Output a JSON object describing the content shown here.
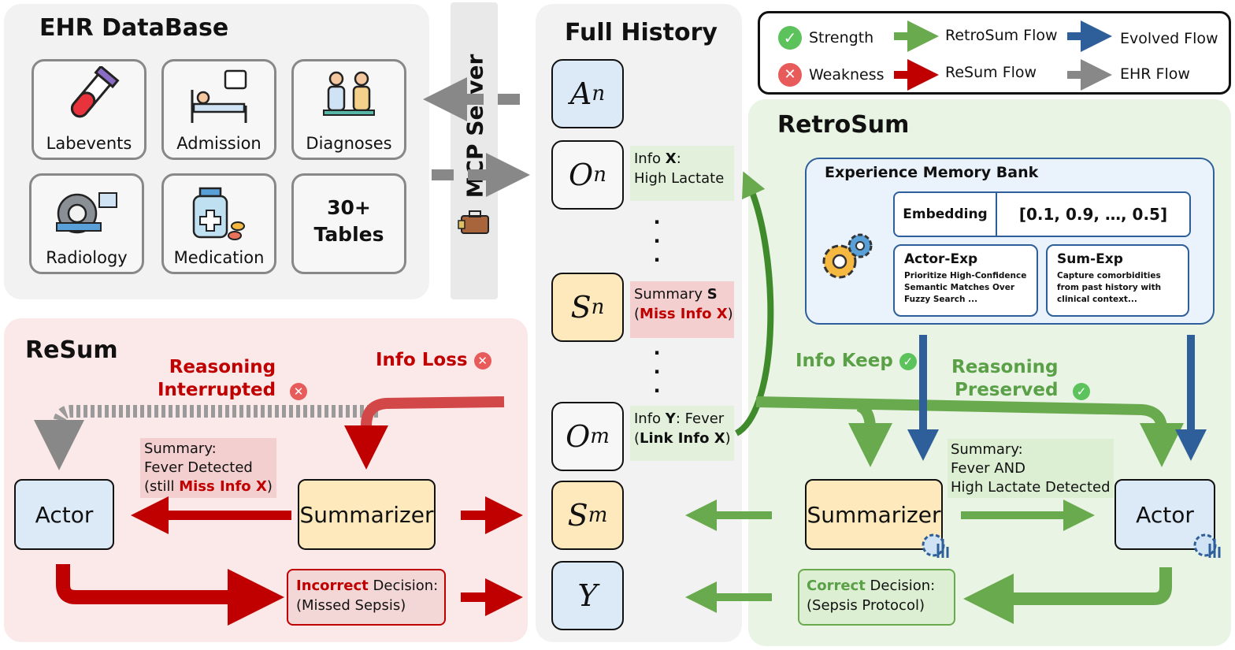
{
  "ehr": {
    "title": "EHR DataBase",
    "tiles": [
      "Labevents",
      "Admission",
      "Diagnoses",
      "Radiology",
      "Medication"
    ],
    "tables_line1": "30+",
    "tables_line2": "Tables"
  },
  "mcp": {
    "label": "MCP Server"
  },
  "history": {
    "title": "Full History",
    "A": "A",
    "O": "O",
    "S": "S",
    "Y": "Y",
    "n": "n",
    "m": "m",
    "info_x_prefix": "Info ",
    "info_x_bold": "X",
    "info_x_suffix": ":",
    "info_x_line2": "High Lactate",
    "summary_prefix": "Summary ",
    "summary_bold": "S",
    "miss_open": "(",
    "miss_text": "Miss Info X",
    "miss_close": ")",
    "info_y_prefix": "Info ",
    "info_y_bold": "Y",
    "info_y_suffix": ": Fever",
    "link_open": "(",
    "link_text": "Link Info X",
    "link_close": ")",
    "dots": "·"
  },
  "legend": {
    "strength": "Strength",
    "weakness": "Weakness",
    "retrosum_flow": "RetroSum Flow",
    "resum_flow": "ReSum Flow",
    "evolved_flow": "Evolved Flow",
    "ehr_flow": "EHR Flow",
    "colors": {
      "retrosum": "#6aaa4f",
      "resum": "#c00000",
      "evolved": "#2e5f9a",
      "ehr": "#888888"
    }
  },
  "retrosum": {
    "title": "RetroSum",
    "memory_title": "Experience Memory Bank",
    "embedding_label": "Embedding",
    "embedding_value": "[0.1, 0.9, …, 0.5]",
    "actor_exp_title": "Actor-Exp",
    "actor_exp_text": "Prioritize High-Confidence Semantic Matches Over Fuzzy Search ...",
    "sum_exp_title": "Sum-Exp",
    "sum_exp_text": "Capture comorbidities from past history with clinical context...",
    "info_keep": "Info Keep",
    "reasoning": "Reasoning",
    "preserved": "Preserved",
    "summary_l1": "Summary:",
    "summary_l2": "Fever AND",
    "summary_l3": "High Lactate Detected",
    "summarizer": "Summarizer",
    "actor": "Actor",
    "decision_bold": "Correct",
    "decision_rest": " Decision:",
    "decision_l2": "(Sepsis Protocol)"
  },
  "resum": {
    "title": "ReSum",
    "reasoning_l1": "Reasoning",
    "reasoning_l2": "Interrupted",
    "info_loss": "Info Loss",
    "summary_l1": "Summary:",
    "summary_l2": "Fever Detected",
    "summary_l3_pre": "(still ",
    "summary_l3_red": "Miss Info X",
    "summary_l3_post": ")",
    "actor": "Actor",
    "summarizer": "Summarizer",
    "decision_bold": "Incorrect",
    "decision_rest": " Decision:",
    "decision_l2": "(Missed Sepsis)"
  },
  "icons": {
    "check": "✓",
    "cross": "✕"
  }
}
